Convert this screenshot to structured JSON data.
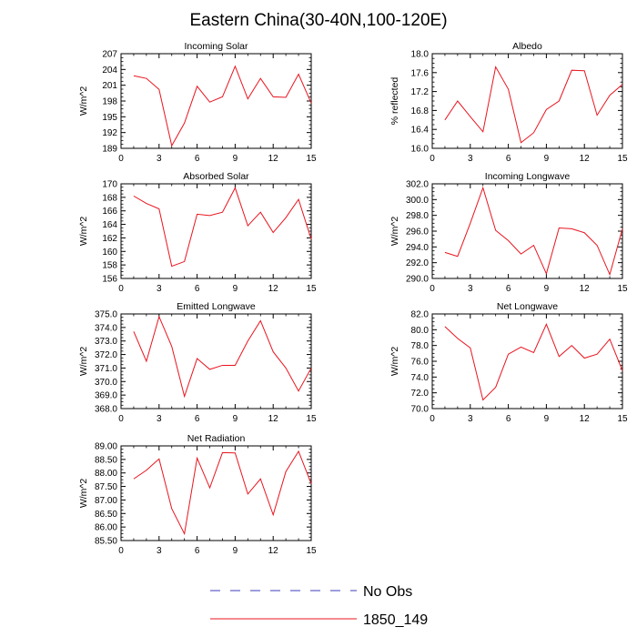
{
  "figure": {
    "title": "Eastern China(30-40N,100-120E)"
  },
  "legend": {
    "items": [
      {
        "label": "No Obs",
        "color": "#3b3bb8",
        "style": "dashed"
      },
      {
        "label": "1850_149",
        "color": "#e8141e",
        "style": "solid"
      }
    ]
  },
  "chart_data": [
    {
      "type": "line",
      "title": "Incoming Solar",
      "ylabel": "W/m^2",
      "xlabel": "",
      "xlim": [
        0,
        15
      ],
      "ylim": [
        189,
        207
      ],
      "yticks": [
        "189",
        "192",
        "195",
        "198",
        "201",
        "204",
        "207"
      ],
      "xticks": [
        "0",
        "3",
        "6",
        "9",
        "12",
        "15"
      ],
      "series": [
        {
          "name": "1850_149",
          "color": "#e8141e",
          "x": [
            1,
            2,
            3,
            4,
            5,
            6,
            7,
            8,
            9,
            10,
            11,
            12,
            13,
            14,
            15
          ],
          "y": [
            202.8,
            202.3,
            200.2,
            189.5,
            193.8,
            200.8,
            197.8,
            198.8,
            204.6,
            198.4,
            202.3,
            198.8,
            198.7,
            203.1,
            197.6
          ]
        }
      ]
    },
    {
      "type": "line",
      "title": "Albedo",
      "ylabel": "% reflected",
      "xlabel": "",
      "xlim": [
        0,
        15
      ],
      "ylim": [
        16.0,
        18.0
      ],
      "yticks": [
        "16.0",
        "16.4",
        "16.8",
        "17.2",
        "17.6",
        "18.0"
      ],
      "xticks": [
        "0",
        "3",
        "6",
        "9",
        "12",
        "15"
      ],
      "series": [
        {
          "name": "1850_149",
          "color": "#e8141e",
          "x": [
            1,
            2,
            3,
            4,
            5,
            6,
            7,
            8,
            9,
            10,
            11,
            12,
            13,
            14,
            15
          ],
          "y": [
            16.6,
            17.0,
            16.67,
            16.35,
            17.72,
            17.25,
            16.12,
            16.33,
            16.82,
            17.0,
            17.65,
            17.64,
            16.7,
            17.12,
            17.35
          ]
        }
      ]
    },
    {
      "type": "line",
      "title": "Absorbed Solar",
      "ylabel": "W/m^2",
      "xlabel": "",
      "xlim": [
        0,
        15
      ],
      "ylim": [
        156,
        170
      ],
      "yticks": [
        "156",
        "158",
        "160",
        "162",
        "164",
        "166",
        "168",
        "170"
      ],
      "xticks": [
        "0",
        "3",
        "6",
        "9",
        "12",
        "15"
      ],
      "series": [
        {
          "name": "1850_149",
          "color": "#e8141e",
          "x": [
            1,
            2,
            3,
            4,
            5,
            6,
            7,
            8,
            9,
            10,
            11,
            12,
            13,
            14,
            15
          ],
          "y": [
            168.2,
            167.1,
            166.3,
            157.8,
            158.5,
            165.5,
            165.3,
            165.8,
            169.4,
            163.8,
            165.8,
            162.8,
            165.0,
            167.7,
            161.8
          ]
        }
      ]
    },
    {
      "type": "line",
      "title": "Incoming Longwave",
      "ylabel": "W/m^2",
      "xlabel": "",
      "xlim": [
        0,
        15
      ],
      "ylim": [
        290.0,
        302.0
      ],
      "yticks": [
        "290.0",
        "292.0",
        "294.0",
        "296.0",
        "298.0",
        "300.0",
        "302.0"
      ],
      "xticks": [
        "0",
        "3",
        "6",
        "9",
        "12",
        "15"
      ],
      "series": [
        {
          "name": "1850_149",
          "color": "#e8141e",
          "x": [
            1,
            2,
            3,
            4,
            5,
            6,
            7,
            8,
            9,
            10,
            11,
            12,
            13,
            14,
            15
          ],
          "y": [
            293.3,
            292.8,
            297.0,
            301.5,
            296.1,
            294.8,
            293.1,
            294.2,
            290.6,
            296.4,
            296.3,
            295.8,
            294.2,
            290.5,
            296.3
          ]
        }
      ]
    },
    {
      "type": "line",
      "title": "Emitted Longwave",
      "ylabel": "W/m^2",
      "xlabel": "",
      "xlim": [
        0,
        15
      ],
      "ylim": [
        368.0,
        375.0
      ],
      "yticks": [
        "368.0",
        "369.0",
        "370.0",
        "371.0",
        "372.0",
        "373.0",
        "374.0",
        "375.0"
      ],
      "xticks": [
        "0",
        "3",
        "6",
        "9",
        "12",
        "15"
      ],
      "series": [
        {
          "name": "1850_149",
          "color": "#e8141e",
          "x": [
            1,
            2,
            3,
            4,
            5,
            6,
            7,
            8,
            9,
            10,
            11,
            12,
            13,
            14,
            15
          ],
          "y": [
            373.7,
            371.5,
            374.8,
            372.6,
            368.9,
            371.7,
            370.9,
            371.2,
            371.2,
            373.0,
            374.5,
            372.2,
            371.0,
            369.3,
            371.0
          ]
        }
      ]
    },
    {
      "type": "line",
      "title": "Net Longwave",
      "ylabel": "W/m^2",
      "xlabel": "",
      "xlim": [
        0,
        15
      ],
      "ylim": [
        70.0,
        82.0
      ],
      "yticks": [
        "70.0",
        "72.0",
        "74.0",
        "76.0",
        "78.0",
        "80.0",
        "82.0"
      ],
      "xticks": [
        "0",
        "3",
        "6",
        "9",
        "12",
        "15"
      ],
      "series": [
        {
          "name": "1850_149",
          "color": "#e8141e",
          "x": [
            1,
            2,
            3,
            4,
            5,
            6,
            7,
            8,
            9,
            10,
            11,
            12,
            13,
            14,
            15
          ],
          "y": [
            80.4,
            78.9,
            77.7,
            71.1,
            72.7,
            76.9,
            77.8,
            77.1,
            80.7,
            76.6,
            78.0,
            76.4,
            76.9,
            78.8,
            74.8
          ]
        }
      ]
    },
    {
      "type": "line",
      "title": "Net Radiation",
      "ylabel": "W/m^2",
      "xlabel": "",
      "xlim": [
        0,
        15
      ],
      "ylim": [
        85.5,
        89.0
      ],
      "yticks": [
        "85.50",
        "86.00",
        "86.50",
        "87.00",
        "87.50",
        "88.00",
        "88.50",
        "89.00"
      ],
      "xticks": [
        "0",
        "3",
        "6",
        "9",
        "12",
        "15"
      ],
      "series": [
        {
          "name": "1850_149",
          "color": "#e8141e",
          "x": [
            1,
            2,
            3,
            4,
            5,
            6,
            7,
            8,
            9,
            10,
            11,
            12,
            13,
            14,
            15
          ],
          "y": [
            87.78,
            88.1,
            88.52,
            86.68,
            85.75,
            88.55,
            87.45,
            88.75,
            88.74,
            87.22,
            87.78,
            86.45,
            88.05,
            88.8,
            87.6
          ]
        }
      ]
    }
  ]
}
